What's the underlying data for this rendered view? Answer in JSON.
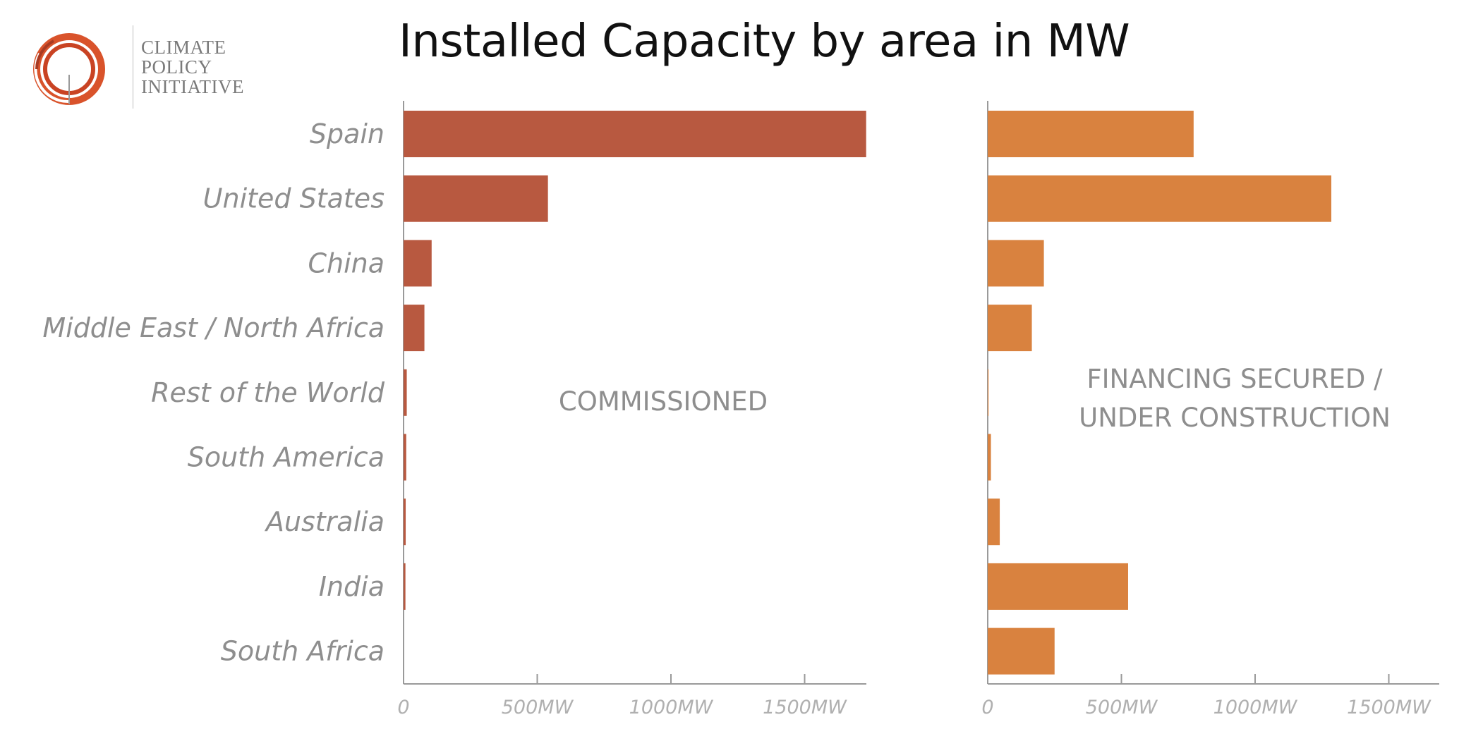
{
  "title": "Installed Capacity by area in MW",
  "logo": {
    "lines": [
      "CLIMATE",
      "POLICY",
      "INITIATIVE"
    ]
  },
  "colors": {
    "commissioned": "#b85940",
    "financing": "#d9823f",
    "axis": "#9a9a9a"
  },
  "chart_data": [
    {
      "type": "bar",
      "orientation": "horizontal",
      "panel_label": "COMMISSIONED",
      "categories": [
        "Spain",
        "United States",
        "China",
        "Middle East / North Africa",
        "Rest of the World",
        "South America",
        "Australia",
        "India",
        "South Africa"
      ],
      "values": [
        1730,
        540,
        105,
        78,
        12,
        10,
        8,
        7,
        0
      ],
      "xlim": [
        0,
        1730
      ],
      "xticks": [
        0,
        500,
        1000,
        1500
      ],
      "xtick_labels": [
        "0",
        "500MW",
        "1000MW",
        "1500MW"
      ],
      "grid": false
    },
    {
      "type": "bar",
      "orientation": "horizontal",
      "panel_label_lines": [
        "FINANCING SECURED /",
        "UNDER CONSTRUCTION"
      ],
      "categories": [
        "Spain",
        "United States",
        "China",
        "Middle East / North Africa",
        "Rest of the World",
        "South America",
        "Australia",
        "India",
        "South Africa"
      ],
      "values": [
        770,
        1285,
        210,
        165,
        3,
        12,
        45,
        525,
        250
      ],
      "xlim": [
        0,
        1690
      ],
      "xticks": [
        0,
        500,
        1000,
        1500
      ],
      "xtick_labels": [
        "0",
        "500MW",
        "1000MW",
        "1500MW"
      ],
      "grid": false
    }
  ]
}
